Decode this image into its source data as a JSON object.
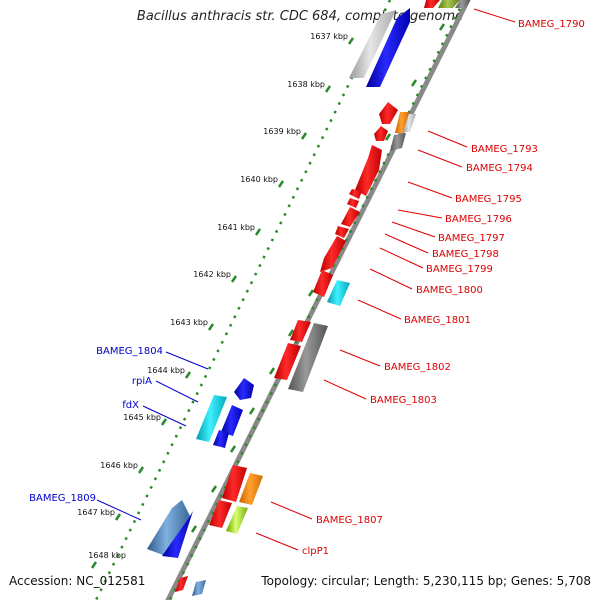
{
  "title": "Bacillus anthracis str. CDC 684, complete genome",
  "accession": "Accession: NC_012581",
  "topology": "Topology: circular; Length: 5,230,115 bp; Genes: 5,708",
  "colors": {
    "backbone": "#888888",
    "ruler": "#2a8a2a",
    "plus_label": "#dd0000",
    "minus_label": "#0000cc"
  },
  "ruler_ticks": [
    "1637 kbp",
    "1638 kbp",
    "1639 kbp",
    "1640 kbp",
    "1641 kbp",
    "1642 kbp",
    "1643 kbp",
    "1644 kbp",
    "1645 kbp",
    "1646 kbp",
    "1647 kbp",
    "1648 kbp"
  ],
  "genes_right": [
    "BAMEG_1790",
    "BAMEG_1793",
    "BAMEG_1794",
    "BAMEG_1795",
    "BAMEG_1796",
    "BAMEG_1797",
    "BAMEG_1798",
    "BAMEG_1799",
    "BAMEG_1800",
    "BAMEG_1801",
    "BAMEG_1802",
    "BAMEG_1803",
    "BAMEG_1807",
    "clpP1"
  ],
  "genes_left": [
    "BAMEG_1804",
    "rpiA",
    "fdX",
    "BAMEG_1809"
  ]
}
